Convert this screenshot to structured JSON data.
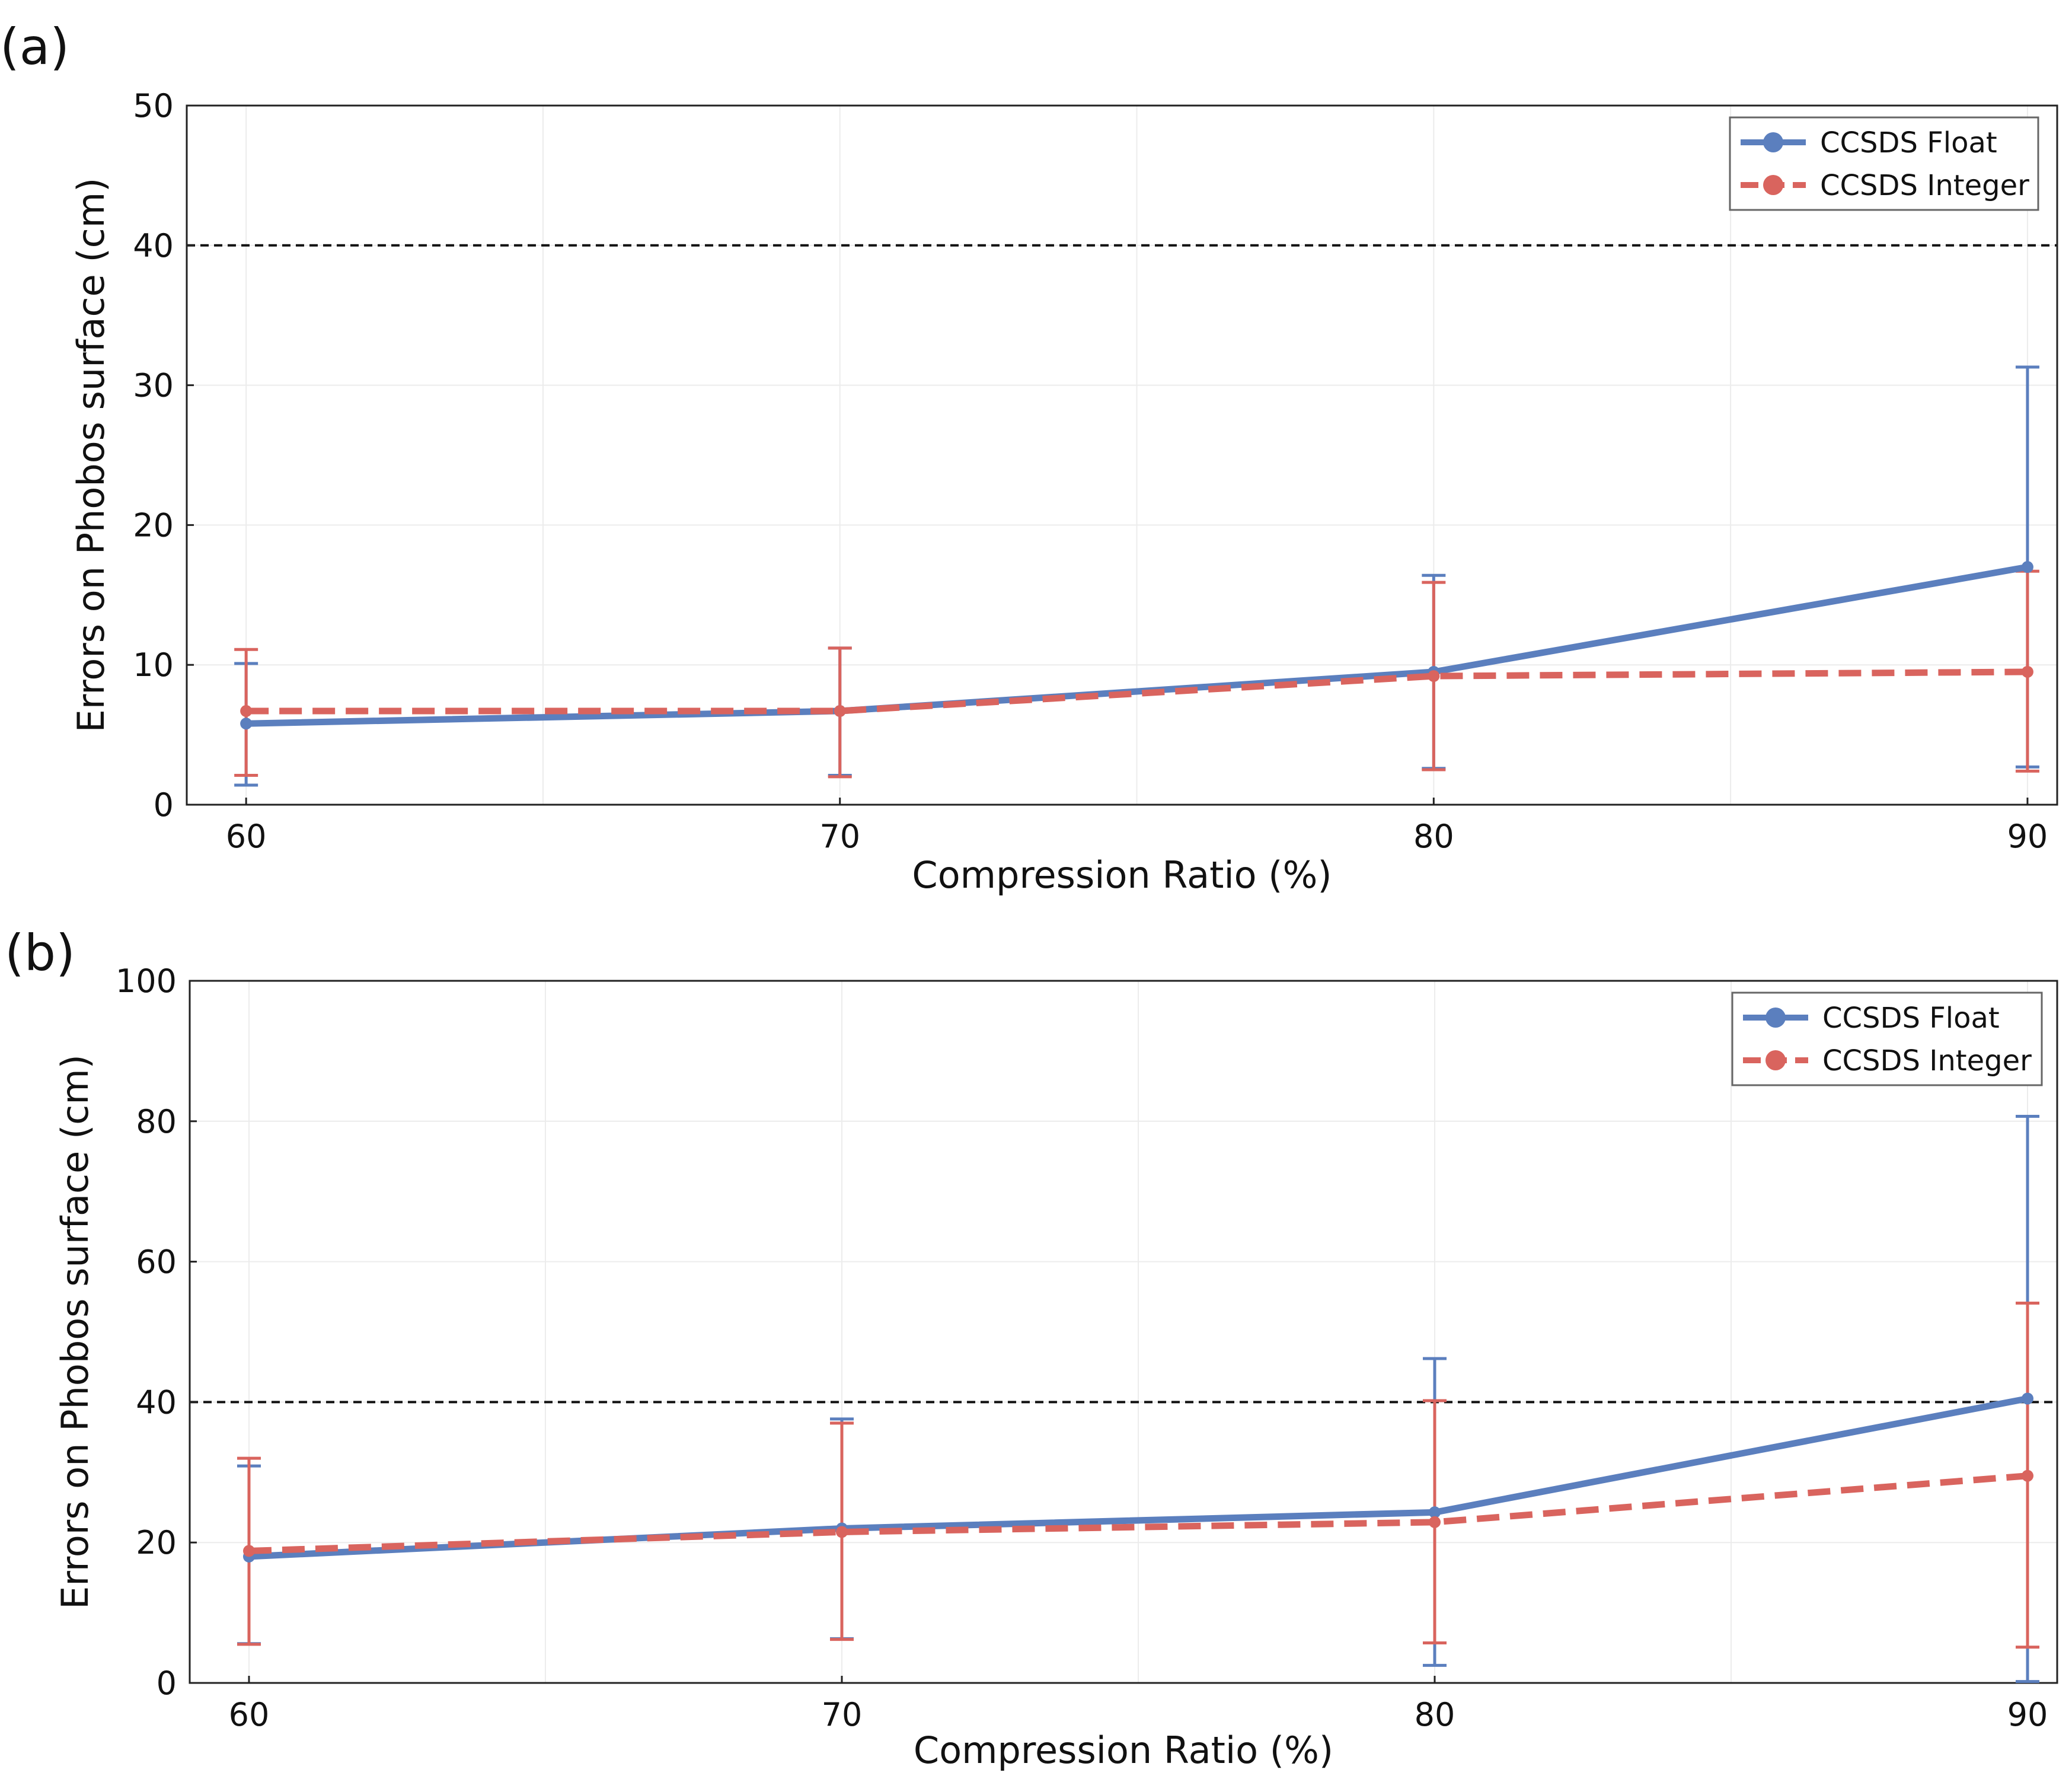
{
  "chart_data": [
    {
      "panel": "(a)",
      "type": "line",
      "xlabel": "Compression Ratio (%)",
      "ylabel": "Errors on Phobos surface (cm)",
      "xlim": [
        59,
        90.5
      ],
      "ylim": [
        0,
        50
      ],
      "xticks": [
        "60",
        "70",
        "80",
        "90"
      ],
      "yticks": [
        "0",
        "10",
        "20",
        "30",
        "40",
        "50"
      ],
      "threshold": 40,
      "legend_position": "top-right",
      "grid": true,
      "x": [
        60,
        70,
        80,
        90
      ],
      "series": [
        {
          "name": "CCSDS Float",
          "color": "#5b7fbe",
          "dash": "solid",
          "values": [
            5.8,
            6.7,
            9.5,
            17.0
          ],
          "err_low": [
            1.4,
            2.1,
            2.6,
            2.7
          ],
          "err_high": [
            10.1,
            11.2,
            16.4,
            31.3
          ]
        },
        {
          "name": "CCSDS Integer",
          "color": "#d9645e",
          "dash": "dashed",
          "values": [
            6.7,
            6.7,
            9.2,
            9.5
          ],
          "err_low": [
            2.1,
            2.0,
            2.5,
            2.4
          ],
          "err_high": [
            11.1,
            11.2,
            15.9,
            16.7
          ]
        }
      ]
    },
    {
      "panel": "(b)",
      "type": "line",
      "xlabel": "Compression Ratio (%)",
      "ylabel": "Errors on Phobos surface (cm)",
      "xlim": [
        59,
        90.5
      ],
      "ylim": [
        0,
        100
      ],
      "xticks": [
        "60",
        "70",
        "80",
        "90"
      ],
      "yticks": [
        "0",
        "20",
        "40",
        "60",
        "80",
        "100"
      ],
      "threshold": 40,
      "legend_position": "top-right",
      "grid": true,
      "x": [
        60,
        70,
        80,
        90
      ],
      "series": [
        {
          "name": "CCSDS Float",
          "color": "#5b7fbe",
          "dash": "solid",
          "values": [
            18.0,
            22.0,
            24.3,
            40.5
          ],
          "err_low": [
            5.6,
            6.3,
            2.5,
            0.2
          ],
          "err_high": [
            30.9,
            37.6,
            46.2,
            80.7
          ]
        },
        {
          "name": "CCSDS Integer",
          "color": "#d9645e",
          "dash": "dashed",
          "values": [
            18.8,
            21.5,
            22.9,
            29.5
          ],
          "err_low": [
            5.5,
            6.2,
            5.7,
            5.1
          ],
          "err_high": [
            32.0,
            37.0,
            40.2,
            54.1
          ]
        }
      ]
    }
  ]
}
